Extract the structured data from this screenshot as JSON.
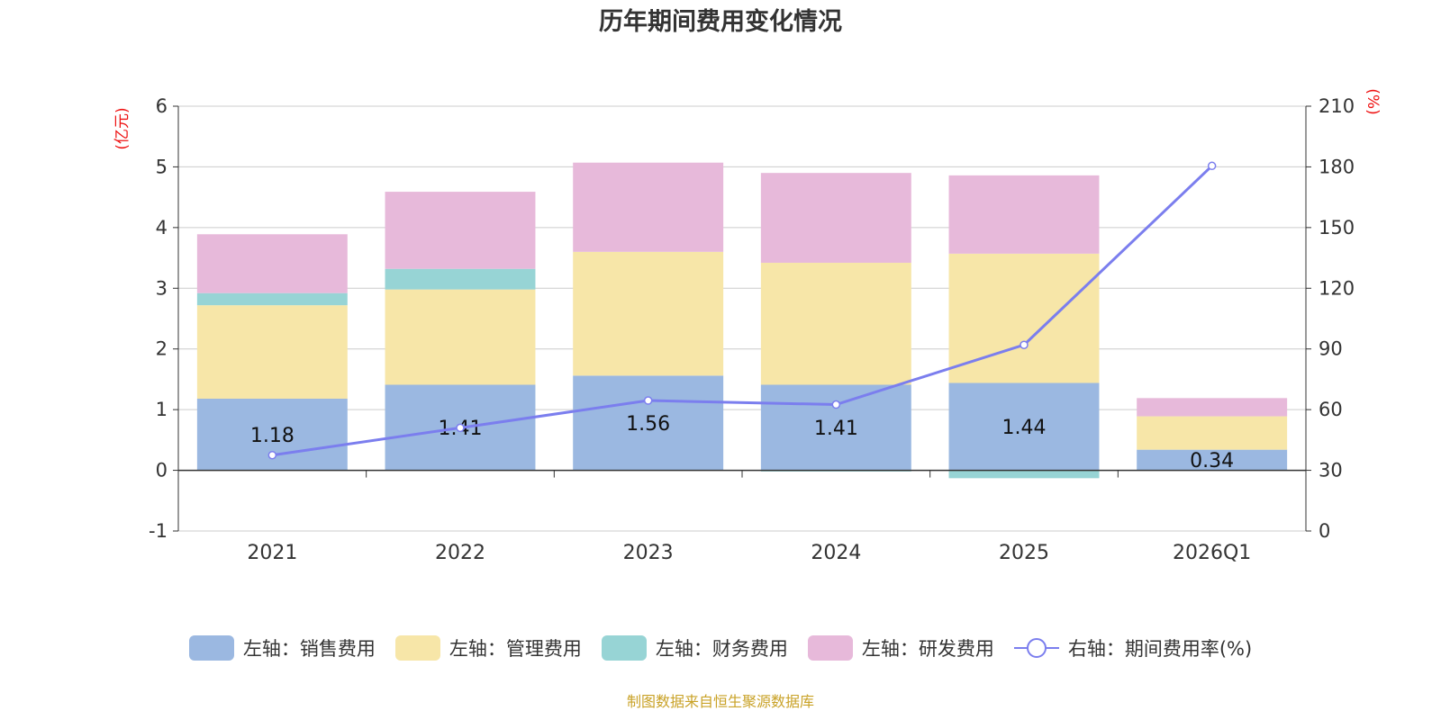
{
  "chart_data": {
    "type": "bar",
    "title": "历年期间费用变化情况",
    "categories": [
      "2021",
      "2022",
      "2023",
      "2024",
      "2025",
      "2026Q1"
    ],
    "stacked": true,
    "left_axis": {
      "label": "(亿元)",
      "range": [
        -1,
        6
      ],
      "ticks": [
        "-1",
        "0",
        "1",
        "2",
        "3",
        "4",
        "5",
        "6"
      ]
    },
    "right_axis": {
      "label": "(%)",
      "range": [
        0,
        210
      ],
      "ticks": [
        "0",
        "30",
        "60",
        "90",
        "120",
        "150",
        "180",
        "210"
      ]
    },
    "series": [
      {
        "name": "左轴：销售费用",
        "axis": "left",
        "type": "bar",
        "color": "#9bb8e1",
        "values": [
          1.18,
          1.41,
          1.56,
          1.41,
          1.44,
          0.34
        ]
      },
      {
        "name": "左轴：管理费用",
        "axis": "left",
        "type": "bar",
        "color": "#f7e6a8",
        "values": [
          1.54,
          1.57,
          2.04,
          2.01,
          2.13,
          0.55
        ]
      },
      {
        "name": "左轴：财务费用",
        "axis": "left",
        "type": "bar",
        "color": "#97d4d5",
        "values": [
          0.2,
          0.34,
          0.0,
          -0.02,
          -0.13,
          0.0
        ]
      },
      {
        "name": "左轴：研发费用",
        "axis": "left",
        "type": "bar",
        "color": "#e7b9da",
        "values": [
          0.97,
          1.27,
          1.47,
          1.48,
          1.29,
          0.3
        ]
      },
      {
        "name": "右轴：期间费用率(%)",
        "axis": "right",
        "type": "line",
        "color": "#7b7eee",
        "values": [
          37.5,
          51,
          64.5,
          62.5,
          92,
          180.5
        ]
      }
    ],
    "data_labels": [
      "1.18",
      "1.41",
      "1.56",
      "1.41",
      "1.44",
      "0.34"
    ],
    "axis_label_color": "#ee1111",
    "legend_position": "bottom"
  },
  "footer": {
    "text": "制图数据来自恒生聚源数据库",
    "color": "#c9a227"
  }
}
